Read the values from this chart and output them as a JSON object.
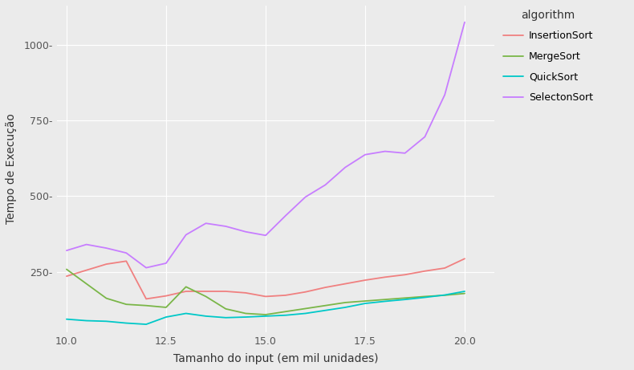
{
  "x": [
    10.0,
    10.5,
    11.0,
    11.5,
    12.0,
    12.5,
    13.0,
    13.5,
    14.0,
    14.5,
    15.0,
    15.5,
    16.0,
    16.5,
    17.0,
    17.5,
    18.0,
    18.5,
    19.0,
    19.5,
    20.0
  ],
  "InsertionSort": [
    235,
    255,
    275,
    285,
    160,
    170,
    185,
    185,
    185,
    180,
    168,
    172,
    183,
    198,
    210,
    222,
    232,
    240,
    252,
    262,
    293
  ],
  "MergeSort": [
    258,
    210,
    162,
    142,
    138,
    132,
    200,
    168,
    127,
    112,
    108,
    118,
    128,
    138,
    148,
    153,
    158,
    163,
    168,
    172,
    178
  ],
  "QuickSort": [
    93,
    88,
    86,
    80,
    76,
    100,
    112,
    103,
    98,
    100,
    103,
    106,
    112,
    122,
    132,
    145,
    152,
    158,
    165,
    173,
    185
  ],
  "SelectonSort": [
    320,
    340,
    328,
    312,
    263,
    278,
    372,
    410,
    400,
    382,
    370,
    435,
    497,
    537,
    595,
    637,
    648,
    642,
    696,
    835,
    1075
  ],
  "colors": {
    "InsertionSort": "#f08080",
    "MergeSort": "#7ab648",
    "QuickSort": "#00c8c8",
    "SelectonSort": "#c77dff"
  },
  "xlabel": "Tamanho do input (em mil unidades)",
  "ylabel": "Tempo de Execução",
  "legend_title": "algorithm",
  "background_color": "#ebebeb",
  "plot_bg_color": "#ebebeb",
  "grid_color": "#ffffff",
  "xlim": [
    9.75,
    20.75
  ],
  "ylim": [
    50,
    1130
  ],
  "yticks": [
    250,
    500,
    750,
    1000
  ],
  "xticks": [
    10.0,
    12.5,
    15.0,
    17.5,
    20.0
  ],
  "linewidth": 1.3
}
